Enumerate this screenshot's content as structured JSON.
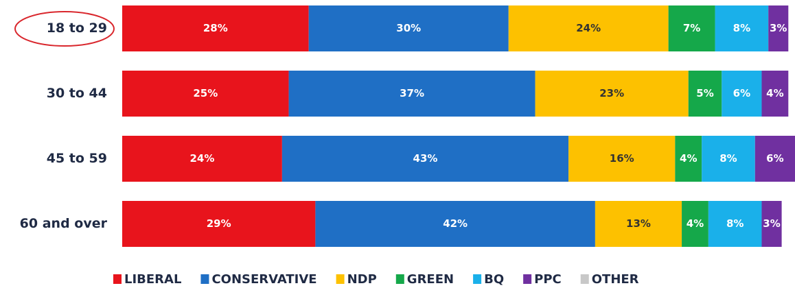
{
  "chart_data": {
    "type": "stacked-bar-horizontal",
    "categories": [
      "18 to 29",
      "30 to 44",
      "45 to 59",
      "60 and over"
    ],
    "series": [
      {
        "name": "LIBERAL",
        "color": "#e8141c",
        "label_color": "#ffffff",
        "values": [
          28,
          25,
          24,
          29
        ],
        "value_labels": [
          "28%",
          "25%",
          "24%",
          "29%"
        ]
      },
      {
        "name": "CONSERVATIVE",
        "color": "#1f6fc5",
        "label_color": "#ffffff",
        "values": [
          30,
          37,
          43,
          42
        ],
        "value_labels": [
          "30%",
          "37%",
          "43%",
          "42%"
        ]
      },
      {
        "name": "NDP",
        "color": "#fdc100",
        "label_color": "#333333",
        "values": [
          24,
          23,
          16,
          13
        ],
        "value_labels": [
          "24%",
          "23%",
          "16%",
          "13%"
        ]
      },
      {
        "name": "GREEN",
        "color": "#15a84a",
        "label_color": "#ffffff",
        "values": [
          7,
          5,
          4,
          4
        ],
        "value_labels": [
          "7%",
          "5%",
          "4%",
          "4%"
        ]
      },
      {
        "name": "BQ",
        "color": "#1ab0ea",
        "label_color": "#ffffff",
        "values": [
          8,
          6,
          8,
          8
        ],
        "value_labels": [
          "8%",
          "6%",
          "8%",
          "8%"
        ]
      },
      {
        "name": "PPC",
        "color": "#7030a0",
        "label_color": "#ffffff",
        "values": [
          3,
          4,
          6,
          3
        ],
        "value_labels": [
          "3%",
          "4%",
          "6%",
          "3%"
        ]
      },
      {
        "name": "OTHER",
        "color": "#c8c8c8",
        "label_color": "#333333",
        "values": [
          null,
          null,
          null,
          null
        ]
      }
    ]
  }
}
